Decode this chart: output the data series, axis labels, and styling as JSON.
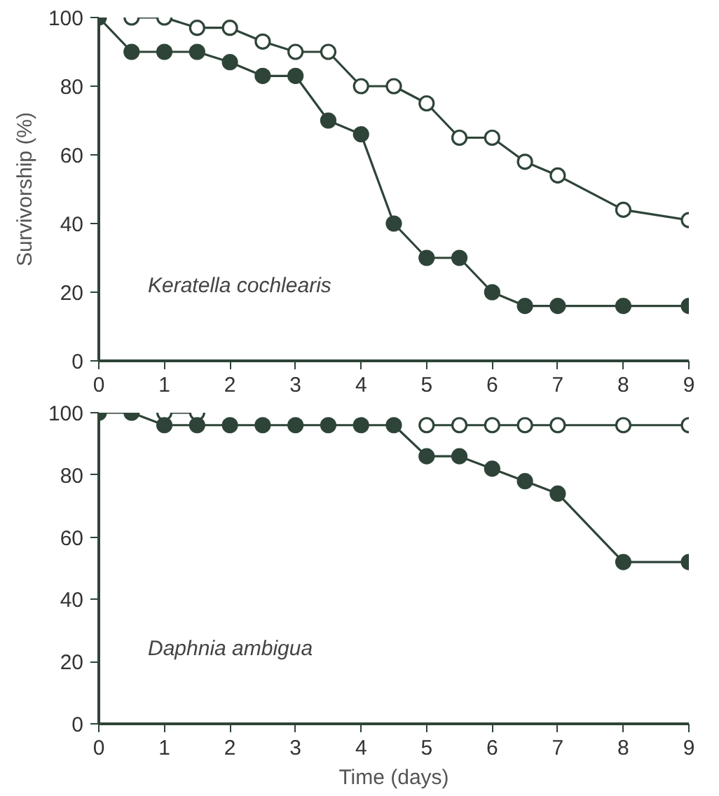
{
  "chart_data": [
    {
      "type": "line",
      "ylabel": "Survivorship (%)",
      "annotations": [
        "Keratella cochlearis"
      ],
      "x": [
        0,
        0.5,
        1,
        1.5,
        2,
        2.5,
        3,
        3.5,
        4,
        4.5,
        5,
        5.5,
        6,
        6.5,
        7,
        8,
        9
      ],
      "series": [
        {
          "color": "#ffffff",
          "values": [
            null,
            100,
            100,
            97,
            97,
            93,
            90,
            90,
            80,
            80,
            75,
            65,
            65,
            58,
            54,
            44,
            41
          ]
        },
        {
          "color": "#2e4438",
          "values": [
            100,
            90,
            90,
            90,
            87,
            83,
            83,
            70,
            66,
            40,
            30,
            30,
            20,
            16,
            16,
            16,
            16
          ]
        }
      ],
      "xlim": [
        0,
        9
      ],
      "ylim": [
        0,
        100
      ],
      "xticks": [
        0,
        1,
        2,
        3,
        4,
        5,
        6,
        7,
        8,
        9
      ],
      "yticks": [
        0,
        20,
        40,
        60,
        80,
        100
      ],
      "marker": "circle",
      "line_style": "solid"
    },
    {
      "type": "line",
      "xlabel": "Time (days)",
      "annotations": [
        "Daphnia ambigua"
      ],
      "x": [
        0,
        0.5,
        1,
        1.5,
        2,
        2.5,
        3,
        3.5,
        4,
        4.5,
        5,
        5.5,
        6,
        6.5,
        7,
        8,
        9
      ],
      "series": [
        {
          "color": "#ffffff",
          "values": [
            null,
            null,
            100,
            100,
            null,
            null,
            null,
            null,
            null,
            null,
            96,
            96,
            96,
            96,
            96,
            96,
            96
          ]
        },
        {
          "color": "#2e4438",
          "values": [
            100,
            100,
            96,
            96,
            96,
            96,
            96,
            96,
            96,
            96,
            86,
            86,
            82,
            78,
            74,
            52,
            52
          ]
        }
      ],
      "xlim": [
        0,
        9
      ],
      "ylim": [
        0,
        100
      ],
      "xticks": [
        0,
        1,
        2,
        3,
        4,
        5,
        6,
        7,
        8,
        9
      ],
      "yticks": [
        0,
        20,
        40,
        60,
        80,
        100
      ],
      "marker": "circle",
      "line_style": "solid"
    }
  ]
}
